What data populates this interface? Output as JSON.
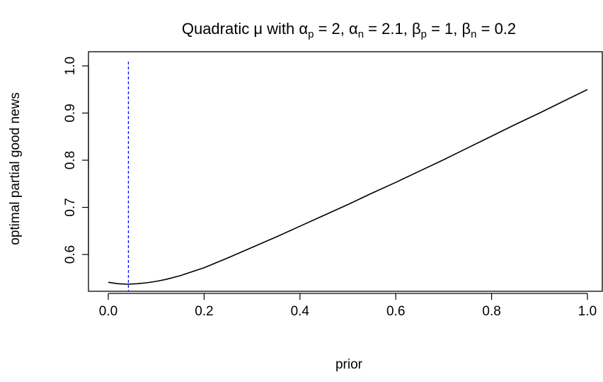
{
  "chart_data": {
    "type": "line",
    "title": {
      "parts": [
        {
          "text": "Quadratic "
        },
        {
          "text": "μ"
        },
        {
          "text": " with "
        },
        {
          "text": "α"
        },
        {
          "text": "p",
          "sub": true
        },
        {
          "text": " = 2, "
        },
        {
          "text": "α"
        },
        {
          "text": "n",
          "sub": true
        },
        {
          "text": " = 2.1, "
        },
        {
          "text": "β"
        },
        {
          "text": "p",
          "sub": true
        },
        {
          "text": " = 1,  "
        },
        {
          "text": "β"
        },
        {
          "text": "n",
          "sub": true
        },
        {
          "text": " = 0.2"
        }
      ]
    },
    "xlabel": "prior",
    "ylabel": "optimal partial good news",
    "xlim": [
      0.0,
      1.0
    ],
    "ylim": [
      0.537,
      1.0
    ],
    "x_ticks": [
      "0.0",
      "0.2",
      "0.4",
      "0.6",
      "0.8",
      "1.0"
    ],
    "y_ticks": [
      "0.6",
      "0.7",
      "0.8",
      "0.9",
      "1.0"
    ],
    "grid": false,
    "legend": "none",
    "series": [
      {
        "color": "#000000",
        "x": [
          0.0,
          0.02,
          0.04,
          0.06,
          0.08,
          0.1,
          0.12,
          0.15,
          0.2,
          0.25,
          0.3,
          0.35,
          0.4,
          0.45,
          0.5,
          0.55,
          0.6,
          0.65,
          0.7,
          0.75,
          0.8,
          0.85,
          0.9,
          0.95,
          1.0
        ],
        "y": [
          0.541,
          0.538,
          0.537,
          0.538,
          0.54,
          0.543,
          0.547,
          0.555,
          0.572,
          0.593,
          0.615,
          0.637,
          0.66,
          0.683,
          0.706,
          0.73,
          0.753,
          0.777,
          0.801,
          0.826,
          0.851,
          0.876,
          0.9,
          0.925,
          0.95
        ]
      }
    ],
    "vline": {
      "x": 0.042,
      "color": "#0000ff",
      "style": "dashed"
    }
  }
}
